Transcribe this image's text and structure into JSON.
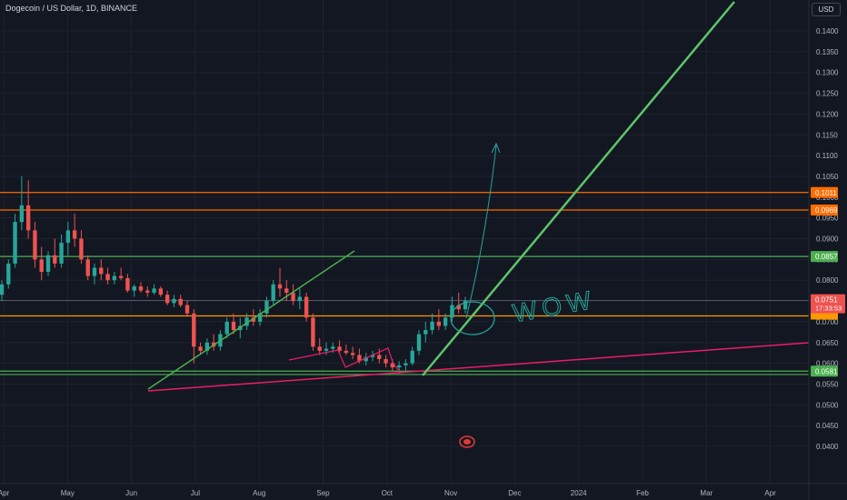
{
  "header": {
    "title": "Dogecoin / US Dollar, 1D, BINANCE",
    "currency_button": "USD"
  },
  "chart_data": {
    "type": "candlestick",
    "x_ticks": [
      "Apr",
      "May",
      "Jun",
      "Jul",
      "Aug",
      "Sep",
      "Oct",
      "Nov",
      "Dec",
      "2024",
      "Feb",
      "Mar",
      "Apr"
    ],
    "y_ticks": [
      "0.1400",
      "0.1350",
      "0.1300",
      "0.1250",
      "0.1200",
      "0.1150",
      "0.1100",
      "0.1050",
      "0.1000",
      "0.0950",
      "0.0900",
      "0.0850",
      "0.0800",
      "0.0750",
      "0.0700",
      "0.0650",
      "0.0600",
      "0.0550",
      "0.0500",
      "0.0450",
      "0.0400"
    ],
    "ylim": [
      0.04,
      0.14
    ],
    "colors": {
      "up": "#26a69a",
      "down": "#ef5350",
      "support": "#4caf50",
      "resistance": "#ff6d00",
      "trend": "#e91e63",
      "annotation": "#26a69a"
    },
    "horizontal_levels": [
      {
        "value": 0.1011,
        "label": "0.1011",
        "color": "#ff6d00"
      },
      {
        "value": 0.0969,
        "label": "0.0969",
        "color": "#ff6d00"
      },
      {
        "value": 0.0857,
        "label": "0.0857",
        "color": "#4caf50"
      },
      {
        "value": 0.0714,
        "label": "",
        "color": "#ff9800"
      },
      {
        "value": 0.0581,
        "label": "0.0581",
        "color": "#4caf50"
      },
      {
        "value": 0.0573,
        "label": "",
        "color": "#4caf50"
      }
    ],
    "last_price": {
      "value": 0.0751,
      "label": "0.0751",
      "countdown": "17:33:53"
    },
    "annotation_text": "WOW",
    "candles": [
      [
        0.0765,
        0.08,
        0.075,
        0.079
      ],
      [
        0.079,
        0.085,
        0.078,
        0.084
      ],
      [
        0.084,
        0.096,
        0.083,
        0.094
      ],
      [
        0.094,
        0.105,
        0.092,
        0.098
      ],
      [
        0.098,
        0.104,
        0.09,
        0.092
      ],
      [
        0.092,
        0.094,
        0.083,
        0.085
      ],
      [
        0.085,
        0.088,
        0.08,
        0.082
      ],
      [
        0.082,
        0.087,
        0.081,
        0.086
      ],
      [
        0.086,
        0.09,
        0.083,
        0.084
      ],
      [
        0.084,
        0.091,
        0.083,
        0.089
      ],
      [
        0.089,
        0.094,
        0.086,
        0.092
      ],
      [
        0.092,
        0.096,
        0.088,
        0.09
      ],
      [
        0.09,
        0.092,
        0.084,
        0.085
      ],
      [
        0.085,
        0.086,
        0.08,
        0.081
      ],
      [
        0.081,
        0.084,
        0.079,
        0.083
      ],
      [
        0.083,
        0.085,
        0.08,
        0.0815
      ],
      [
        0.0815,
        0.083,
        0.079,
        0.08
      ],
      [
        0.08,
        0.082,
        0.079,
        0.081
      ],
      [
        0.081,
        0.083,
        0.08,
        0.0805
      ],
      [
        0.0805,
        0.0815,
        0.077,
        0.0775
      ],
      [
        0.0775,
        0.079,
        0.076,
        0.0785
      ],
      [
        0.0785,
        0.0795,
        0.077,
        0.0775
      ],
      [
        0.0775,
        0.0785,
        0.076,
        0.077
      ],
      [
        0.077,
        0.079,
        0.0765,
        0.078
      ],
      [
        0.078,
        0.0785,
        0.076,
        0.0765
      ],
      [
        0.0765,
        0.0775,
        0.074,
        0.0745
      ],
      [
        0.0745,
        0.0765,
        0.0735,
        0.0755
      ],
      [
        0.0755,
        0.0765,
        0.0735,
        0.074
      ],
      [
        0.074,
        0.075,
        0.0715,
        0.072
      ],
      [
        0.072,
        0.073,
        0.06,
        0.064
      ],
      [
        0.064,
        0.065,
        0.062,
        0.063
      ],
      [
        0.063,
        0.066,
        0.062,
        0.065
      ],
      [
        0.065,
        0.067,
        0.063,
        0.064
      ],
      [
        0.064,
        0.068,
        0.063,
        0.067
      ],
      [
        0.067,
        0.071,
        0.066,
        0.07
      ],
      [
        0.07,
        0.072,
        0.067,
        0.068
      ],
      [
        0.068,
        0.071,
        0.066,
        0.069
      ],
      [
        0.069,
        0.072,
        0.068,
        0.071
      ],
      [
        0.071,
        0.073,
        0.069,
        0.07
      ],
      [
        0.07,
        0.073,
        0.069,
        0.072
      ],
      [
        0.072,
        0.076,
        0.071,
        0.075
      ],
      [
        0.075,
        0.08,
        0.074,
        0.079
      ],
      [
        0.079,
        0.083,
        0.076,
        0.078
      ],
      [
        0.078,
        0.08,
        0.075,
        0.077
      ],
      [
        0.077,
        0.079,
        0.074,
        0.075
      ],
      [
        0.075,
        0.078,
        0.073,
        0.076
      ],
      [
        0.076,
        0.077,
        0.07,
        0.071
      ],
      [
        0.071,
        0.072,
        0.063,
        0.064
      ],
      [
        0.064,
        0.066,
        0.062,
        0.063
      ],
      [
        0.063,
        0.065,
        0.062,
        0.0635
      ],
      [
        0.0635,
        0.065,
        0.0625,
        0.064
      ],
      [
        0.064,
        0.0655,
        0.0625,
        0.063
      ],
      [
        0.063,
        0.0645,
        0.062,
        0.0625
      ],
      [
        0.0625,
        0.064,
        0.061,
        0.062
      ],
      [
        0.062,
        0.0635,
        0.06,
        0.0605
      ],
      [
        0.0605,
        0.0625,
        0.0595,
        0.0615
      ],
      [
        0.0615,
        0.063,
        0.0605,
        0.062
      ],
      [
        0.062,
        0.0635,
        0.06,
        0.061
      ],
      [
        0.061,
        0.062,
        0.059,
        0.06
      ],
      [
        0.06,
        0.061,
        0.058,
        0.059
      ],
      [
        0.059,
        0.0605,
        0.0575,
        0.0595
      ],
      [
        0.0595,
        0.061,
        0.058,
        0.06
      ],
      [
        0.06,
        0.064,
        0.0595,
        0.063
      ],
      [
        0.063,
        0.068,
        0.062,
        0.067
      ],
      [
        0.067,
        0.07,
        0.065,
        0.068
      ],
      [
        0.068,
        0.072,
        0.067,
        0.07
      ],
      [
        0.07,
        0.073,
        0.068,
        0.069
      ],
      [
        0.069,
        0.072,
        0.068,
        0.071
      ],
      [
        0.071,
        0.076,
        0.07,
        0.074
      ],
      [
        0.074,
        0.077,
        0.072,
        0.073
      ],
      [
        0.073,
        0.076,
        0.072,
        0.0751
      ]
    ]
  }
}
